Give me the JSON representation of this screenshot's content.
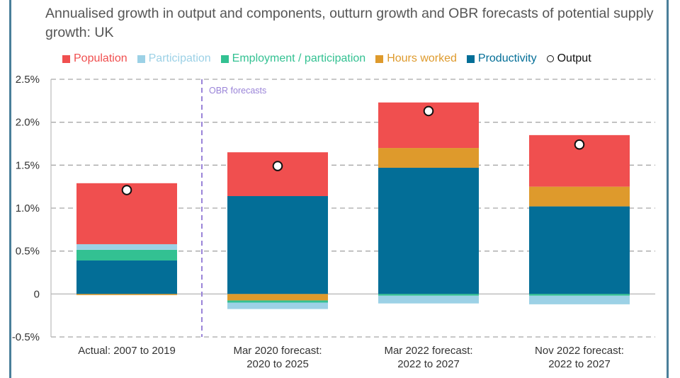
{
  "chart_data": {
    "type": "bar",
    "stacked": true,
    "title": "Annualised growth in output and components, outturn growth and OBR forecasts of potential supply growth: UK",
    "xlabel": "",
    "ylabel": "",
    "ylim": [
      -0.5,
      2.5
    ],
    "yticks": [
      2.5,
      2.0,
      1.5,
      1.0,
      0.5,
      0,
      -0.5
    ],
    "ytick_labels": [
      "2.5%",
      "2.0%",
      "1.5%",
      "1.0%",
      "0.5%",
      "0",
      "-0.5%"
    ],
    "grid": true,
    "legend_position": "top",
    "categories": [
      [
        "Actual: 2007 to 2019"
      ],
      [
        "Mar 2020 forecast:",
        "2020 to 2025"
      ],
      [
        "Mar 2022 forecast:",
        "2022 to 2027"
      ],
      [
        "Nov 2022 forecast:",
        "2022 to 2027"
      ]
    ],
    "series": [
      {
        "name": "Productivity",
        "color": "#036e97",
        "values": [
          0.39,
          1.14,
          1.47,
          1.02
        ]
      },
      {
        "name": "Hours worked",
        "color": "#de9a2c",
        "values": [
          -0.01,
          -0.075,
          0.23,
          0.23
        ]
      },
      {
        "name": "Employment / participation",
        "color": "#33c192",
        "values": [
          0.125,
          -0.025,
          -0.02,
          -0.02
        ]
      },
      {
        "name": "Participation",
        "color": "#9cd1e6",
        "values": [
          0.065,
          -0.075,
          -0.09,
          -0.1
        ]
      },
      {
        "name": "Population",
        "color": "#f04f4f",
        "values": [
          0.71,
          0.51,
          0.53,
          0.6
        ]
      }
    ],
    "output": {
      "name": "Output",
      "values": [
        1.21,
        1.49,
        2.13,
        1.74
      ]
    },
    "annotations": [
      {
        "text": "OBR forecasts",
        "type": "vertical-divider",
        "between_categories": [
          0,
          1
        ],
        "color": "#9a84d8"
      }
    ]
  },
  "legend": [
    {
      "label": "Population",
      "color": "#f04f4f",
      "shape": "square"
    },
    {
      "label": "Participation",
      "color": "#9cd1e6",
      "shape": "square"
    },
    {
      "label": "Employment / participation",
      "color": "#33c192",
      "shape": "square"
    },
    {
      "label": "Hours worked",
      "color": "#de9a2c",
      "shape": "square"
    },
    {
      "label": "Productivity",
      "color": "#036e97",
      "shape": "square"
    },
    {
      "label": "Output",
      "color": "#111111",
      "shape": "circle"
    }
  ]
}
